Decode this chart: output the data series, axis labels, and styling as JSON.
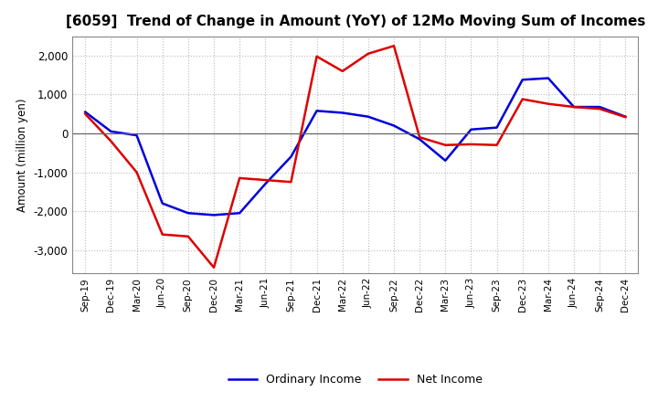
{
  "title": "[6059]  Trend of Change in Amount (YoY) of 12Mo Moving Sum of Incomes",
  "ylabel": "Amount (million yen)",
  "background_color": "#ffffff",
  "grid_color": "#bbbbbb",
  "x_labels": [
    "Sep-19",
    "Dec-19",
    "Mar-20",
    "Jun-20",
    "Sep-20",
    "Dec-20",
    "Mar-21",
    "Jun-21",
    "Sep-21",
    "Dec-21",
    "Mar-22",
    "Jun-22",
    "Sep-22",
    "Dec-22",
    "Mar-23",
    "Jun-23",
    "Sep-23",
    "Dec-23",
    "Mar-24",
    "Jun-24",
    "Sep-24",
    "Dec-24"
  ],
  "ordinary_income": [
    550,
    50,
    -50,
    -1800,
    -2050,
    -2100,
    -2050,
    -1300,
    -600,
    580,
    530,
    430,
    200,
    -150,
    -700,
    100,
    150,
    1380,
    1420,
    680,
    680,
    430
  ],
  "net_income": [
    500,
    -200,
    -1000,
    -2600,
    -2650,
    -3450,
    -1150,
    -1200,
    -1250,
    1980,
    1600,
    2050,
    2250,
    -100,
    -300,
    -280,
    -300,
    880,
    760,
    680,
    630,
    420
  ],
  "ordinary_color": "#0000dd",
  "net_color": "#dd0000",
  "ylim": [
    -3600,
    2500
  ],
  "yticks": [
    -3000,
    -2000,
    -1000,
    0,
    1000,
    2000
  ],
  "line_width": 1.8,
  "title_fontsize": 11,
  "legend_labels": [
    "Ordinary Income",
    "Net Income"
  ]
}
